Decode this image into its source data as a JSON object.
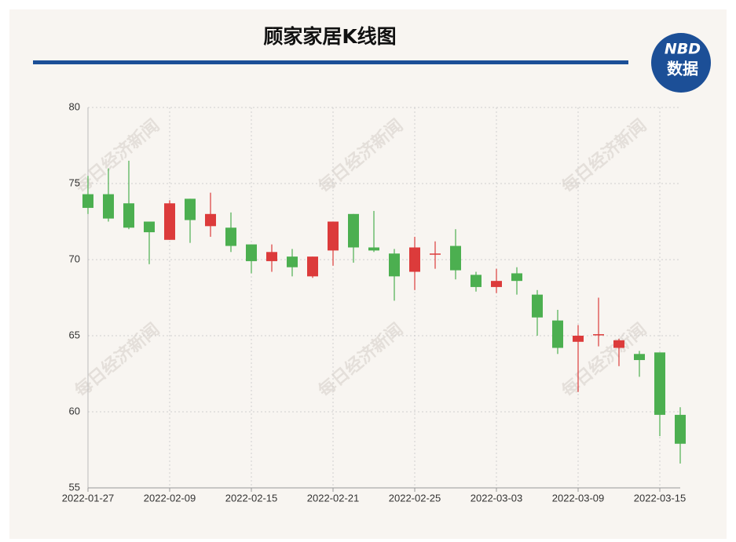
{
  "chart_data": {
    "type": "candlestick",
    "title": "顾家家居K线图",
    "logo": "NBD",
    "logo_sub": "数据",
    "watermark": "每日经济新闻",
    "categories": [
      "2022-01-27",
      null,
      null,
      null,
      "2022-02-09",
      null,
      null,
      null,
      "2022-02-15",
      null,
      null,
      null,
      "2022-02-21",
      null,
      null,
      null,
      "2022-02-25",
      null,
      null,
      null,
      "2022-03-03",
      null,
      null,
      null,
      "2022-03-09",
      null,
      null,
      null,
      "2022-03-15",
      null
    ],
    "open": [
      74.3,
      74.3,
      73.7,
      72.5,
      71.3,
      74.0,
      72.2,
      72.1,
      71.0,
      69.9,
      70.2,
      68.9,
      70.6,
      73.0,
      70.8,
      70.4,
      69.2,
      70.35,
      70.9,
      69.0,
      68.2,
      69.1,
      67.7,
      66.0,
      64.6,
      65.05,
      64.2,
      63.8,
      63.9,
      59.8
    ],
    "high": [
      75.5,
      76.0,
      76.5,
      72.5,
      73.9,
      74.0,
      74.4,
      73.1,
      71.0,
      71.0,
      70.7,
      70.2,
      72.5,
      73.0,
      73.2,
      70.7,
      71.5,
      71.2,
      72.0,
      69.2,
      69.4,
      69.5,
      68.0,
      66.7,
      65.7,
      67.5,
      64.8,
      64.0,
      63.9,
      60.3
    ],
    "low": [
      73.0,
      72.5,
      72.0,
      69.7,
      71.3,
      71.1,
      71.5,
      70.5,
      69.1,
      69.2,
      68.9,
      68.8,
      69.6,
      69.8,
      70.5,
      67.3,
      68.0,
      69.4,
      68.7,
      67.9,
      67.8,
      67.7,
      65.0,
      63.8,
      61.3,
      64.3,
      63.0,
      62.3,
      58.4,
      56.6
    ],
    "close": [
      73.4,
      72.7,
      72.1,
      71.8,
      73.7,
      72.6,
      73.0,
      70.9,
      69.9,
      70.5,
      69.5,
      70.2,
      72.5,
      70.8,
      70.6,
      68.9,
      70.8,
      70.4,
      69.3,
      68.2,
      68.6,
      68.6,
      66.2,
      64.2,
      65.0,
      65.1,
      64.7,
      63.4,
      59.8,
      57.9
    ],
    "up_color": "#dc3b3b",
    "down_color": "#4caf50",
    "ylim": [
      55,
      80
    ],
    "yticks": [
      55,
      60,
      65,
      70,
      75,
      80
    ],
    "grid": true
  }
}
